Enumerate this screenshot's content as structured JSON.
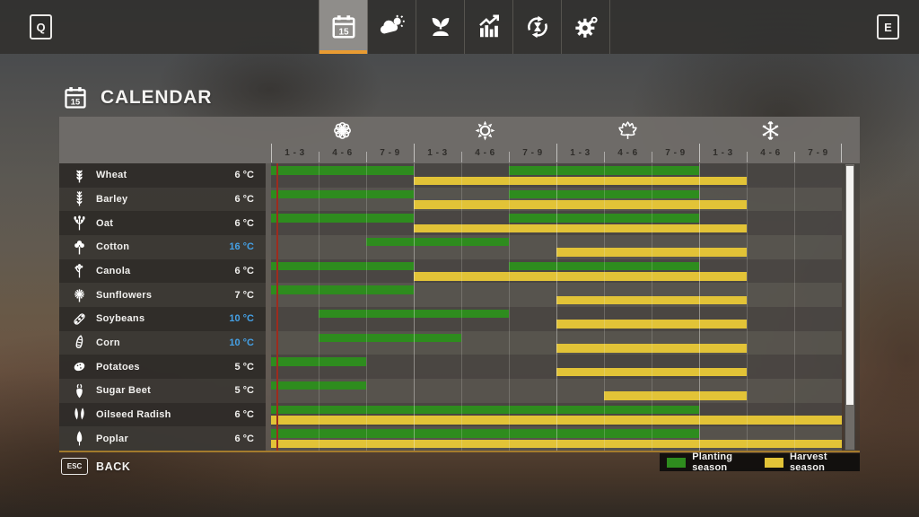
{
  "topbar": {
    "left_key": "Q",
    "right_key": "E",
    "tabs": [
      {
        "name": "calendar",
        "icon": "calendar-icon",
        "badge": "15",
        "selected": true
      },
      {
        "name": "weather",
        "icon": "weather-icon",
        "selected": false
      },
      {
        "name": "crops",
        "icon": "seedling-icon",
        "selected": false
      },
      {
        "name": "statistics",
        "icon": "chart-icon",
        "selected": false
      },
      {
        "name": "economy",
        "icon": "cycle-icon",
        "selected": false
      },
      {
        "name": "settings",
        "icon": "gear-icon",
        "selected": false
      }
    ]
  },
  "page": {
    "title": "CALENDAR",
    "title_icon": "calendar-icon",
    "title_icon_badge": "15"
  },
  "calendar": {
    "seasons": [
      {
        "name": "spring",
        "icon": "flower-icon",
        "months": [
          "1 - 3",
          "4 - 6",
          "7 - 9"
        ]
      },
      {
        "name": "summer",
        "icon": "sun-icon",
        "months": [
          "1 - 3",
          "4 - 6",
          "7 - 9"
        ]
      },
      {
        "name": "autumn",
        "icon": "maple-leaf-icon",
        "months": [
          "1 - 3",
          "4 - 6",
          "7 - 9"
        ]
      },
      {
        "name": "winter",
        "icon": "snowflake-icon",
        "months": [
          "1 - 3",
          "4 - 6",
          "7 - 9"
        ]
      }
    ],
    "columns_total": 12,
    "current_day_marker": {
      "fraction_of_chart": 0.01,
      "color": "#9e2b1e"
    },
    "crops": [
      {
        "name": "Wheat",
        "icon": "wheat-icon",
        "min_temp": "6 °C",
        "temp_highlight": false,
        "planting": [
          [
            0,
            3
          ],
          [
            5,
            9
          ]
        ],
        "harvest": [
          [
            3,
            10
          ]
        ]
      },
      {
        "name": "Barley",
        "icon": "barley-icon",
        "min_temp": "6 °C",
        "temp_highlight": false,
        "planting": [
          [
            0,
            3
          ],
          [
            5,
            9
          ]
        ],
        "harvest": [
          [
            3,
            10
          ]
        ]
      },
      {
        "name": "Oat",
        "icon": "oat-icon",
        "min_temp": "6 °C",
        "temp_highlight": false,
        "planting": [
          [
            0,
            3
          ],
          [
            5,
            9
          ]
        ],
        "harvest": [
          [
            3,
            10
          ]
        ]
      },
      {
        "name": "Cotton",
        "icon": "cotton-icon",
        "min_temp": "16 °C",
        "temp_highlight": true,
        "planting": [
          [
            2,
            5
          ]
        ],
        "harvest": [
          [
            6,
            10
          ]
        ]
      },
      {
        "name": "Canola",
        "icon": "canola-icon",
        "min_temp": "6 °C",
        "temp_highlight": false,
        "planting": [
          [
            0,
            3
          ],
          [
            5,
            9
          ]
        ],
        "harvest": [
          [
            3,
            10
          ]
        ]
      },
      {
        "name": "Sunflowers",
        "icon": "sunflower-icon",
        "min_temp": "7 °C",
        "temp_highlight": false,
        "planting": [
          [
            0,
            3
          ]
        ],
        "harvest": [
          [
            6,
            10
          ]
        ]
      },
      {
        "name": "Soybeans",
        "icon": "soybean-icon",
        "min_temp": "10 °C",
        "temp_highlight": true,
        "planting": [
          [
            1,
            5
          ]
        ],
        "harvest": [
          [
            6,
            10
          ]
        ]
      },
      {
        "name": "Corn",
        "icon": "corn-icon",
        "min_temp": "10 °C",
        "temp_highlight": true,
        "planting": [
          [
            1,
            4
          ]
        ],
        "harvest": [
          [
            6,
            10
          ]
        ]
      },
      {
        "name": "Potatoes",
        "icon": "potato-icon",
        "min_temp": "5 °C",
        "temp_highlight": false,
        "planting": [
          [
            0,
            2
          ]
        ],
        "harvest": [
          [
            6,
            10
          ]
        ]
      },
      {
        "name": "Sugar Beet",
        "icon": "sugar-beet-icon",
        "min_temp": "5 °C",
        "temp_highlight": false,
        "planting": [
          [
            0,
            2
          ]
        ],
        "harvest": [
          [
            7,
            10
          ]
        ]
      },
      {
        "name": "Oilseed Radish",
        "icon": "oilseed-radish-icon",
        "min_temp": "6 °C",
        "temp_highlight": false,
        "planting": [
          [
            0,
            9
          ]
        ],
        "harvest": [
          [
            0,
            12
          ]
        ]
      },
      {
        "name": "Poplar",
        "icon": "poplar-icon",
        "min_temp": "6 °C",
        "temp_highlight": false,
        "planting": [
          [
            0,
            9
          ]
        ],
        "harvest": [
          [
            0,
            12
          ]
        ]
      }
    ],
    "legend": [
      {
        "label": "Planting season",
        "color": "#2e8c1e"
      },
      {
        "label": "Harvest season",
        "color": "#e2c337"
      }
    ]
  },
  "footer": {
    "back_key": "ESC",
    "back_label": "BACK"
  },
  "colors": {
    "planting_green": "#2e8c1e",
    "harvest_yellow": "#e2c337",
    "temperature_blue": "#45a1e6",
    "accent_orange": "#e89b32",
    "day_marker_red": "#9e2b1e"
  }
}
